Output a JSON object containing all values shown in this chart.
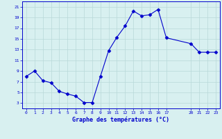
{
  "x": [
    0,
    1,
    2,
    3,
    4,
    5,
    6,
    7,
    8,
    9,
    10,
    11,
    12,
    13,
    14,
    15,
    16,
    17,
    20,
    21,
    22,
    23
  ],
  "y": [
    8,
    9,
    7.2,
    6.8,
    5.2,
    4.7,
    4.3,
    3.1,
    3.1,
    8.0,
    12.8,
    15.3,
    17.4,
    20.2,
    19.3,
    19.5,
    20.5,
    15.2,
    14.1,
    12.5,
    12.5,
    12.5
  ],
  "line_color": "#0000cc",
  "marker": "D",
  "marker_size": 2.5,
  "bg_color": "#d8f0f0",
  "grid_color": "#b8d8d8",
  "axis_color": "#0000cc",
  "tick_color": "#0000cc",
  "xlabel": "Graphe des températures (°C)",
  "xlabel_color": "#0000cc",
  "xlim": [
    -0.5,
    23.5
  ],
  "ylim": [
    2,
    22
  ],
  "yticks": [
    3,
    5,
    7,
    9,
    11,
    13,
    15,
    17,
    19,
    21
  ],
  "xticks": [
    0,
    1,
    2,
    3,
    4,
    5,
    6,
    7,
    8,
    9,
    10,
    11,
    12,
    13,
    14,
    15,
    16,
    17,
    20,
    21,
    22,
    23
  ],
  "figsize": [
    3.2,
    2.0
  ],
  "dpi": 100
}
